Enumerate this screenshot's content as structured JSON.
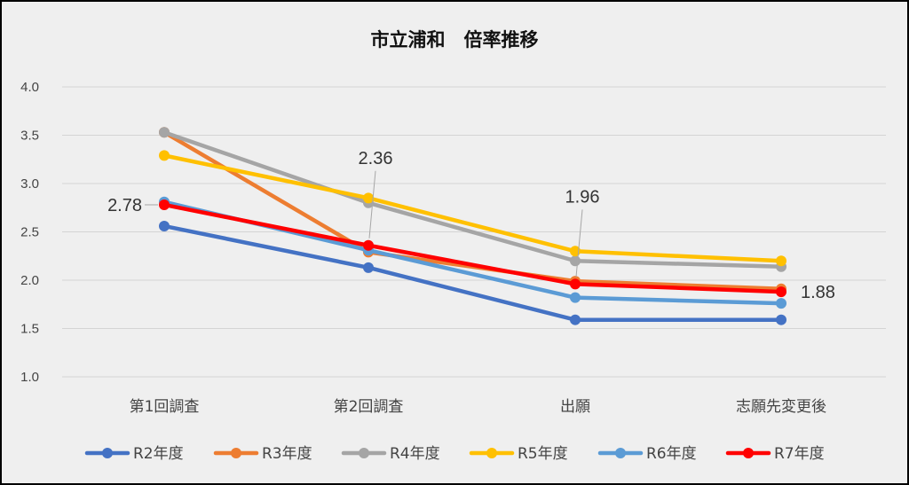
{
  "chart_data": {
    "type": "line",
    "title": "市立浦和　倍率推移",
    "categories": [
      "第1回調査",
      "第2回調査",
      "出願",
      "志願先変更後"
    ],
    "ylim": [
      1.0,
      4.0
    ],
    "yticks": [
      "1.0",
      "1.5",
      "2.0",
      "2.5",
      "3.0",
      "3.5",
      "4.0"
    ],
    "grid": true,
    "legend_position": "bottom",
    "series": [
      {
        "name": "R2年度",
        "color": "#4472C4",
        "values": [
          2.56,
          2.13,
          1.59,
          1.59
        ]
      },
      {
        "name": "R3年度",
        "color": "#ED7D31",
        "values": [
          3.53,
          2.29,
          1.99,
          1.91
        ]
      },
      {
        "name": "R4年度",
        "color": "#A5A5A5",
        "values": [
          3.53,
          2.8,
          2.2,
          2.14
        ]
      },
      {
        "name": "R5年度",
        "color": "#FFC000",
        "values": [
          3.29,
          2.85,
          2.3,
          2.2
        ]
      },
      {
        "name": "R6年度",
        "color": "#5B9BD5",
        "values": [
          2.81,
          2.31,
          1.82,
          1.76
        ]
      },
      {
        "name": "R7年度",
        "color": "#FF0000",
        "values": [
          2.78,
          2.36,
          1.96,
          1.88
        ]
      }
    ],
    "data_labels": [
      {
        "series": "R7年度",
        "index": 0,
        "text": "2.78",
        "side": "left"
      },
      {
        "series": "R7年度",
        "index": 1,
        "text": "2.36",
        "side": "above"
      },
      {
        "series": "R7年度",
        "index": 2,
        "text": "1.96",
        "side": "above"
      },
      {
        "series": "R7年度",
        "index": 3,
        "text": "1.88",
        "side": "right"
      }
    ]
  }
}
